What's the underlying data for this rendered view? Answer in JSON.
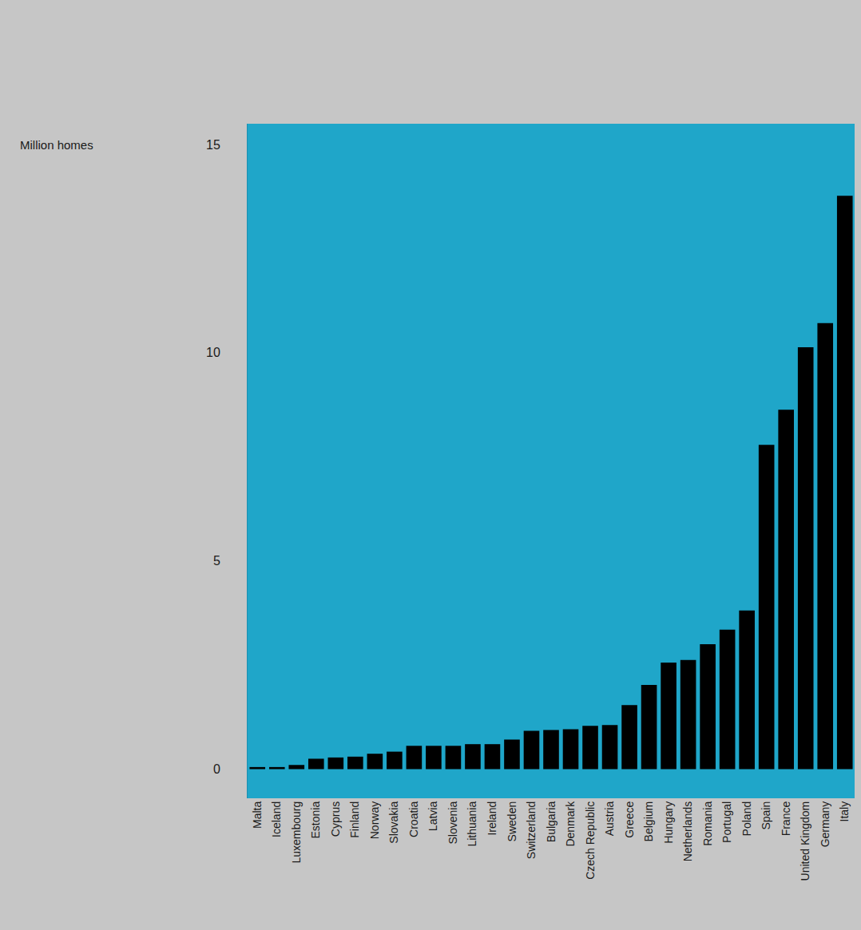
{
  "chart_data": {
    "type": "bar",
    "y_label": "Million homes",
    "categories": [
      "Malta",
      "Iceland",
      "Luxembourg",
      "Estonia",
      "Cyprus",
      "Finland",
      "Norway",
      "Slovakia",
      "Croatia",
      "Latvia",
      "Slovenia",
      "Lithuania",
      "Ireland",
      "Sweden",
      "Switzerland",
      "Bulgaria",
      "Denmark",
      "Czech Republic",
      "Austria",
      "Greece",
      "Belgium",
      "Hungary",
      "Netherlands",
      "Romania",
      "Portugal",
      "Poland",
      "Spain",
      "France",
      "United Kingdom",
      "Germany",
      "Italy"
    ],
    "values": [
      0.05,
      0.05,
      0.1,
      0.25,
      0.28,
      0.3,
      0.37,
      0.42,
      0.56,
      0.56,
      0.56,
      0.6,
      0.6,
      0.71,
      0.92,
      0.94,
      0.96,
      1.04,
      1.06,
      1.54,
      2.02,
      2.56,
      2.62,
      3.0,
      3.35,
      3.81,
      7.79,
      8.63,
      10.13,
      10.71,
      13.77
    ],
    "color": "#000000",
    "ylim": [
      -0.7,
      15.5
    ],
    "yticks": [
      0,
      5,
      10,
      15
    ],
    "grid": false
  }
}
